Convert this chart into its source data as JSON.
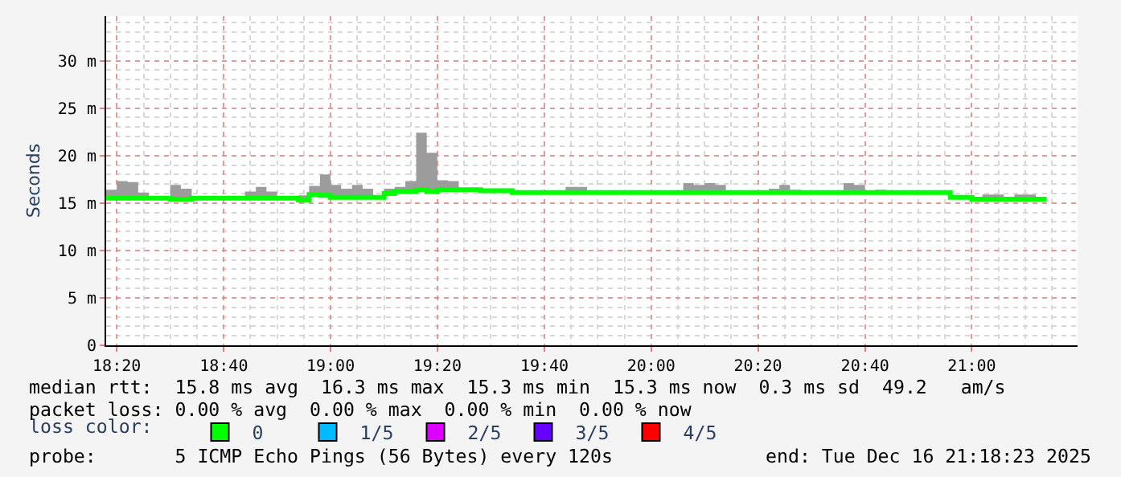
{
  "chart_data": {
    "type": "step",
    "ylabel": "Seconds",
    "legend_title": "loss color:",
    "legend": "bottom",
    "grid": true,
    "marker": "none",
    "line_style": "solid",
    "x": [
      18.3,
      18.333,
      18.367,
      18.4,
      18.433,
      18.467,
      18.5,
      18.533,
      18.567,
      18.6,
      18.633,
      18.667,
      18.7,
      18.733,
      18.767,
      18.8,
      18.833,
      18.867,
      18.9,
      18.933,
      18.967,
      19.0,
      19.033,
      19.067,
      19.1,
      19.133,
      19.167,
      19.2,
      19.233,
      19.267,
      19.3,
      19.333,
      19.367,
      19.4,
      19.433,
      19.467,
      19.5,
      19.533,
      19.567,
      19.6,
      19.633,
      19.667,
      19.7,
      19.733,
      19.767,
      19.8,
      19.833,
      19.867,
      19.9,
      19.933,
      19.967,
      20.0,
      20.033,
      20.067,
      20.1,
      20.133,
      20.167,
      20.2,
      20.233,
      20.267,
      20.3,
      20.333,
      20.367,
      20.4,
      20.433,
      20.467,
      20.5,
      20.533,
      20.567,
      20.6,
      20.633,
      20.667,
      20.7,
      20.733,
      20.767,
      20.8,
      20.833,
      20.867,
      20.9,
      20.933,
      20.967,
      21.0,
      21.033,
      21.067,
      21.1,
      21.133,
      21.167,
      21.2,
      21.233
    ],
    "xlim": [
      18.3,
      21.33
    ],
    "xticks": [
      {
        "value": 18.333,
        "label": "18:20"
      },
      {
        "value": 18.667,
        "label": "18:40"
      },
      {
        "value": 19.0,
        "label": "19:00"
      },
      {
        "value": 19.333,
        "label": "19:20"
      },
      {
        "value": 19.667,
        "label": "19:40"
      },
      {
        "value": 20.0,
        "label": "20:00"
      },
      {
        "value": 20.333,
        "label": "20:20"
      },
      {
        "value": 20.667,
        "label": "20:40"
      },
      {
        "value": 21.0,
        "label": "21:00"
      }
    ],
    "ylim": [
      0,
      34.7
    ],
    "yticks": [
      0,
      {
        "value": 5,
        "label": "5 m"
      },
      {
        "value": 10,
        "label": "10 m"
      },
      {
        "value": 15,
        "label": "15 m"
      },
      {
        "value": 20,
        "label": "20 m"
      },
      {
        "value": 25,
        "label": "25 m"
      },
      {
        "value": 30,
        "label": "30 m"
      }
    ],
    "series": [
      {
        "name": "0",
        "color": "#00ff00",
        "values": [
          15.5,
          15.5,
          15.5,
          15.5,
          15.5,
          15.5,
          15.4,
          15.4,
          15.5,
          15.5,
          15.5,
          15.5,
          15.5,
          15.5,
          15.5,
          15.5,
          15.5,
          15.5,
          15.3,
          15.9,
          15.8,
          15.6,
          15.6,
          15.6,
          15.6,
          15.6,
          16.0,
          16.2,
          16.2,
          16.4,
          16.2,
          16.4,
          16.4,
          16.4,
          16.4,
          16.3,
          16.3,
          16.3,
          16.1,
          16.1,
          16.1,
          16.1,
          16.1,
          16.1,
          16.1,
          16.1,
          16.1,
          16.1,
          16.1,
          16.1,
          16.1,
          16.1,
          16.1,
          16.1,
          16.1,
          16.1,
          16.1,
          16.1,
          16.1,
          16.1,
          16.1,
          16.1,
          16.1,
          16.1,
          16.1,
          16.1,
          16.1,
          16.1,
          16.1,
          16.1,
          16.1,
          16.1,
          16.1,
          16.1,
          16.1,
          16.1,
          16.1,
          16.1,
          16.1,
          15.6,
          15.6,
          15.4,
          15.4,
          15.4,
          15.4,
          15.4,
          15.4,
          15.4,
          15.4
        ],
        "lower": [
          15.5,
          15.5,
          15.5,
          15.5,
          15.5,
          15.5,
          15.4,
          15.4,
          15.5,
          15.5,
          15.5,
          15.5,
          15.5,
          15.5,
          15.5,
          15.5,
          15.5,
          15.5,
          15.3,
          15.9,
          15.8,
          15.6,
          15.6,
          15.6,
          15.6,
          15.6,
          16.0,
          16.2,
          16.2,
          16.4,
          16.2,
          16.4,
          16.4,
          16.4,
          16.4,
          16.3,
          16.3,
          16.3,
          16.1,
          16.1,
          16.1,
          16.1,
          16.1,
          16.1,
          16.1,
          16.1,
          16.1,
          16.1,
          16.1,
          16.1,
          16.1,
          16.1,
          16.1,
          16.1,
          16.1,
          16.1,
          16.1,
          16.1,
          16.1,
          16.1,
          16.1,
          16.1,
          16.1,
          16.1,
          16.1,
          16.1,
          16.1,
          16.1,
          16.1,
          16.1,
          16.1,
          16.1,
          16.1,
          16.1,
          16.1,
          16.1,
          16.1,
          16.1,
          16.1,
          15.6,
          15.6,
          15.4,
          15.4,
          15.4,
          15.4,
          15.4,
          15.4,
          15.4,
          15.4
        ],
        "upper": [
          16.4,
          17.3,
          17.2,
          16.1,
          15.6,
          15.5,
          16.9,
          16.5,
          15.7,
          15.5,
          15.5,
          15.5,
          15.5,
          16.2,
          16.7,
          16.2,
          15.5,
          15.5,
          15.8,
          16.8,
          18.0,
          16.9,
          16.5,
          16.9,
          16.5,
          15.8,
          16.5,
          16.7,
          17.3,
          22.4,
          20.3,
          17.4,
          17.3,
          16.4,
          16.4,
          16.5,
          16.4,
          16.3,
          16.1,
          16.1,
          16.1,
          16.1,
          16.1,
          16.7,
          16.7,
          16.1,
          16.1,
          16.1,
          16.1,
          16.1,
          16.1,
          16.1,
          16.1,
          16.1,
          17.1,
          16.9,
          17.1,
          16.9,
          16.1,
          16.1,
          16.1,
          16.1,
          16.5,
          16.9,
          16.4,
          16.1,
          16.1,
          16.1,
          16.1,
          17.1,
          16.9,
          16.1,
          16.4,
          16.1,
          16.1,
          16.1,
          16.1,
          16.1,
          16.1,
          15.6,
          15.6,
          15.4,
          15.9,
          15.9,
          15.4,
          15.9,
          15.9,
          15.4,
          15.4
        ]
      },
      {
        "name": "1/5",
        "color": "#00bbff",
        "values": [
          null,
          null,
          null,
          null,
          null,
          null,
          null,
          null,
          null,
          null,
          null,
          null,
          null,
          null,
          null,
          null,
          null,
          null,
          null,
          null,
          null,
          null,
          null,
          null,
          null,
          null,
          null,
          null,
          null,
          null,
          null,
          null,
          null,
          null,
          null,
          null,
          null,
          null,
          null,
          null,
          null,
          null,
          null,
          null,
          null,
          null,
          null,
          null,
          null,
          null,
          null,
          null,
          null,
          null,
          null,
          null,
          null,
          null,
          null,
          null,
          null,
          null,
          null,
          null,
          null,
          null,
          null,
          null,
          null,
          null,
          null,
          null,
          null,
          null,
          null,
          null,
          null,
          null,
          null,
          null,
          null,
          null,
          null,
          null,
          null,
          null,
          null,
          null,
          null
        ]
      },
      {
        "name": "2/5",
        "color": "#dd00ff",
        "values": [
          null,
          null,
          null,
          null,
          null,
          null,
          null,
          null,
          null,
          null,
          null,
          null,
          null,
          null,
          null,
          null,
          null,
          null,
          null,
          null,
          null,
          null,
          null,
          null,
          null,
          null,
          null,
          null,
          null,
          null,
          null,
          null,
          null,
          null,
          null,
          null,
          null,
          null,
          null,
          null,
          null,
          null,
          null,
          null,
          null,
          null,
          null,
          null,
          null,
          null,
          null,
          null,
          null,
          null,
          null,
          null,
          null,
          null,
          null,
          null,
          null,
          null,
          null,
          null,
          null,
          null,
          null,
          null,
          null,
          null,
          null,
          null,
          null,
          null,
          null,
          null,
          null,
          null,
          null,
          null,
          null,
          null,
          null,
          null,
          null,
          null,
          null,
          null,
          null
        ]
      },
      {
        "name": "3/5",
        "color": "#6600ff",
        "values": [
          null,
          null,
          null,
          null,
          null,
          null,
          null,
          null,
          null,
          null,
          null,
          null,
          null,
          null,
          null,
          null,
          null,
          null,
          null,
          null,
          null,
          null,
          null,
          null,
          null,
          null,
          null,
          null,
          null,
          null,
          null,
          null,
          null,
          null,
          null,
          null,
          null,
          null,
          null,
          null,
          null,
          null,
          null,
          null,
          null,
          null,
          null,
          null,
          null,
          null,
          null,
          null,
          null,
          null,
          null,
          null,
          null,
          null,
          null,
          null,
          null,
          null,
          null,
          null,
          null,
          null,
          null,
          null,
          null,
          null,
          null,
          null,
          null,
          null,
          null,
          null,
          null,
          null,
          null,
          null,
          null,
          null,
          null,
          null,
          null,
          null,
          null,
          null,
          null
        ]
      },
      {
        "name": "4/5",
        "color": "#ff0000",
        "values": [
          null,
          null,
          null,
          null,
          null,
          null,
          null,
          null,
          null,
          null,
          null,
          null,
          null,
          null,
          null,
          null,
          null,
          null,
          null,
          null,
          null,
          null,
          null,
          null,
          null,
          null,
          null,
          null,
          null,
          null,
          null,
          null,
          null,
          null,
          null,
          null,
          null,
          null,
          null,
          null,
          null,
          null,
          null,
          null,
          null,
          null,
          null,
          null,
          null,
          null,
          null,
          null,
          null,
          null,
          null,
          null,
          null,
          null,
          null,
          null,
          null,
          null,
          null,
          null,
          null,
          null,
          null,
          null,
          null,
          null,
          null,
          null,
          null,
          null,
          null,
          null,
          null,
          null,
          null,
          null,
          null,
          null,
          null,
          null,
          null,
          null,
          null,
          null,
          null
        ]
      }
    ],
    "annotations": [
      "median rtt:  15.8 ms avg  16.3 ms max  15.3 ms min  15.3 ms now  0.3 ms sd  49.2   am/s",
      "packet loss: 0.00 % avg  0.00 % max  0.00 % min  0.00 % now",
      "probe:       5 ICMP Echo Pings (56 Bytes) every 120s",
      "end: Tue Dec 16 21:18:23 2025"
    ]
  }
}
